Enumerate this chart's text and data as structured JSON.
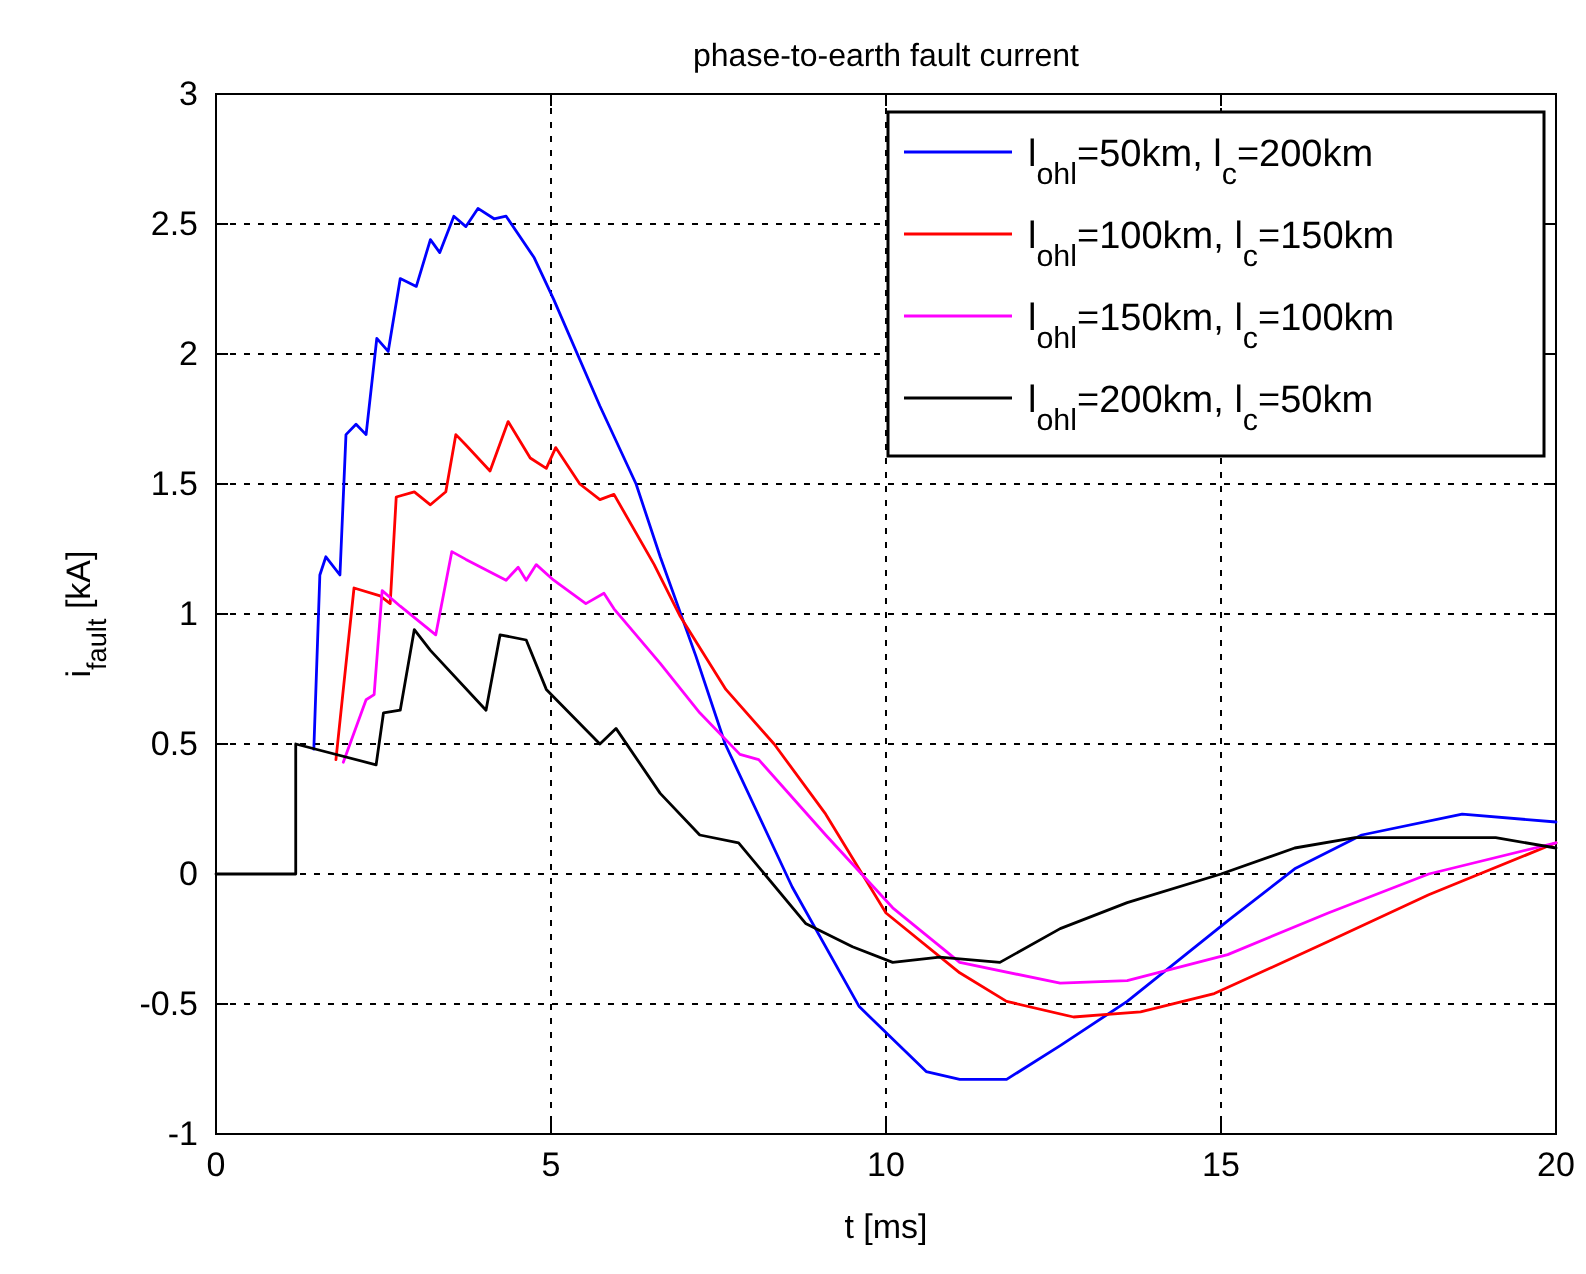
{
  "chart_data": {
    "type": "line",
    "title": "phase-to-earth fault current",
    "xlabel": "t [ms]",
    "ylabel": "i$_{fault}$ [kA]",
    "xlim": [
      0,
      20
    ],
    "xticks": [
      0,
      5,
      10,
      15,
      20
    ],
    "ylim": [
      -1,
      3
    ],
    "yticks": [
      -1,
      -0.5,
      0,
      0.5,
      1,
      1.5,
      2,
      2.5,
      3
    ],
    "grid": true,
    "legend": "top right",
    "line_style": "solid",
    "marker": "none",
    "series": [
      {
        "name": "l$_{ohl}$=50km, l$_{c}$=200km",
        "color": "#0000ff",
        "x": [
          1.46,
          1.55,
          1.64,
          1.85,
          1.94,
          2.09,
          2.24,
          2.4,
          2.57,
          2.75,
          2.99,
          3.2,
          3.34,
          3.55,
          3.73,
          3.91,
          4.15,
          4.33,
          4.75,
          5.04,
          5.73,
          6.27,
          6.63,
          7.16,
          7.6,
          8.6,
          9.6,
          10.6,
          11.1,
          11.8,
          12.6,
          13.6,
          15.1,
          16.1,
          17.1,
          18.6,
          20
        ],
        "values": [
          0.48,
          1.15,
          1.22,
          1.15,
          1.69,
          1.73,
          1.69,
          2.06,
          2.01,
          2.29,
          2.26,
          2.44,
          2.39,
          2.53,
          2.49,
          2.56,
          2.52,
          2.53,
          2.37,
          2.21,
          1.8,
          1.5,
          1.22,
          0.84,
          0.5,
          -0.05,
          -0.51,
          -0.76,
          -0.79,
          -0.79,
          -0.66,
          -0.49,
          -0.18,
          0.02,
          0.15,
          0.23,
          0.2
        ]
      },
      {
        "name": "l$_{ohl}$=100km, l$_{c}$=150km",
        "color": "#ff0000",
        "x": [
          1.79,
          1.9,
          2.06,
          2.45,
          2.6,
          2.69,
          2.96,
          3.2,
          3.43,
          3.58,
          3.73,
          4.09,
          4.36,
          4.69,
          4.93,
          5.07,
          5.43,
          5.73,
          5.94,
          6.54,
          6.93,
          7.61,
          8.33,
          9.1,
          10,
          11.1,
          11.8,
          12.8,
          13.8,
          14.9,
          16.6,
          18.1,
          20
        ],
        "values": [
          0.44,
          0.71,
          1.1,
          1.07,
          1.04,
          1.45,
          1.47,
          1.42,
          1.47,
          1.69,
          1.65,
          1.55,
          1.74,
          1.6,
          1.56,
          1.64,
          1.5,
          1.44,
          1.46,
          1.19,
          0.99,
          0.71,
          0.5,
          0.23,
          -0.15,
          -0.38,
          -0.49,
          -0.55,
          -0.53,
          -0.46,
          -0.26,
          -0.08,
          0.12
        ]
      },
      {
        "name": "l$_{ohl}$=150km, l$_{c}$=100km",
        "color": "#ff00ff",
        "x": [
          1.9,
          2.24,
          2.36,
          2.48,
          2.75,
          3.28,
          3.52,
          3.73,
          4.33,
          4.51,
          4.63,
          4.78,
          5.04,
          5.52,
          5.79,
          5.94,
          6.63,
          7.22,
          7.82,
          8.1,
          9.1,
          10.1,
          11.1,
          12.6,
          13.6,
          15.1,
          16.6,
          18.1,
          20
        ],
        "values": [
          0.43,
          0.67,
          0.69,
          1.09,
          1.03,
          0.92,
          1.24,
          1.21,
          1.13,
          1.18,
          1.13,
          1.19,
          1.13,
          1.04,
          1.08,
          1.02,
          0.81,
          0.62,
          0.46,
          0.44,
          0.15,
          -0.13,
          -0.34,
          -0.42,
          -0.41,
          -0.31,
          -0.15,
          0,
          0.12
        ]
      },
      {
        "name": "l$_{ohl}$=200km, l$_{c}$=50km",
        "color": "#000000",
        "x": [
          0,
          1.19,
          1.19,
          2.39,
          2.5,
          2.75,
          2.96,
          3.2,
          4.03,
          4.24,
          4.63,
          4.93,
          5.73,
          5.97,
          6.63,
          7.22,
          7.8,
          8.8,
          9.5,
          10.1,
          10.8,
          11.7,
          12.6,
          13.6,
          15,
          16.1,
          17,
          19.1,
          20
        ],
        "values": [
          0,
          0,
          0.5,
          0.42,
          0.62,
          0.63,
          0.94,
          0.86,
          0.63,
          0.92,
          0.9,
          0.71,
          0.5,
          0.56,
          0.31,
          0.15,
          0.12,
          -0.19,
          -0.28,
          -0.34,
          -0.32,
          -0.34,
          -0.21,
          -0.11,
          0,
          0.1,
          0.14,
          0.14,
          0.1
        ]
      }
    ]
  }
}
